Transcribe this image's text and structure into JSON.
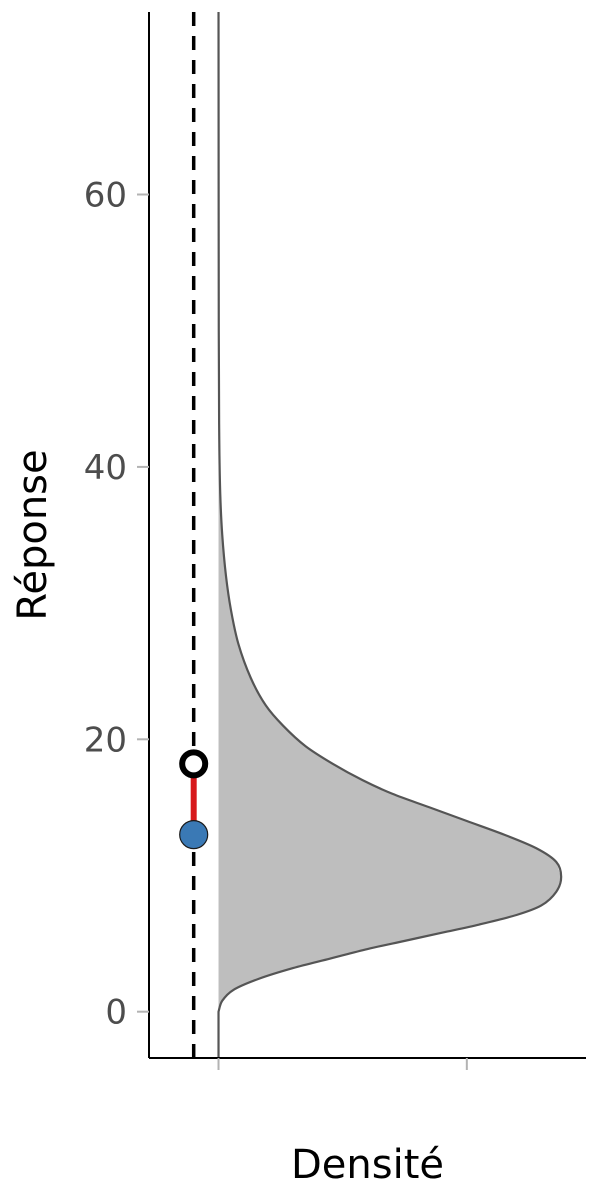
{
  "chart_data": {
    "type": "area",
    "title": "",
    "xlabel": "Densité",
    "ylabel": "Réponse",
    "ylim": [
      -3.4,
      73.4
    ],
    "yticks": [
      {
        "value": 0,
        "label": "0"
      },
      {
        "value": 20,
        "label": "20"
      },
      {
        "value": 40,
        "label": "40"
      },
      {
        "value": 60,
        "label": "60"
      }
    ],
    "xticks": [
      0,
      0.1
    ],
    "xlim": [
      -0.028,
      0.148
    ],
    "density": {
      "orientation": "vertical",
      "mode": 9.9,
      "peak_density": 0.138,
      "x": [
        0,
        0.0015,
        0.006,
        0.016,
        0.03,
        0.045,
        0.06,
        0.075,
        0.09,
        0.105,
        0.12,
        0.13,
        0.136,
        0.138,
        0.136,
        0.128,
        0.115,
        0.1,
        0.085,
        0.07,
        0.058,
        0.046,
        0.035,
        0.026,
        0.019,
        0.013,
        0.008,
        0.005,
        0.003,
        0.0015,
        0.0007,
        0.0003,
        0.0001,
        0
      ],
      "y": [
        0,
        0.8,
        1.6,
        2.4,
        3.2,
        3.9,
        4.6,
        5.2,
        5.8,
        6.4,
        7.1,
        7.8,
        8.8,
        9.9,
        11.0,
        12.0,
        13.0,
        14.0,
        15.0,
        16.0,
        17.0,
        18.2,
        19.5,
        21.0,
        22.5,
        24.5,
        27.0,
        29.5,
        32.0,
        35.0,
        38.0,
        42.0,
        50.0,
        73.4
      ],
      "fill": "#bebebe",
      "stroke": "#555555",
      "baseline_start": 0
    },
    "reference_line": {
      "x": -0.01,
      "style": "dashed",
      "color": "#000000"
    },
    "points": [
      {
        "name": "observed",
        "x": -0.01,
        "y": 13.0,
        "fill": "#3a79b5"
      },
      {
        "name": "predicted",
        "x": -0.01,
        "y": 18.2,
        "fill": "#ffffff",
        "stroke": "#000000"
      }
    ],
    "residual_segment": {
      "x": -0.01,
      "y0": 13.0,
      "y1": 18.2,
      "color": "#d7191c"
    },
    "grid": false,
    "legend": "none"
  }
}
